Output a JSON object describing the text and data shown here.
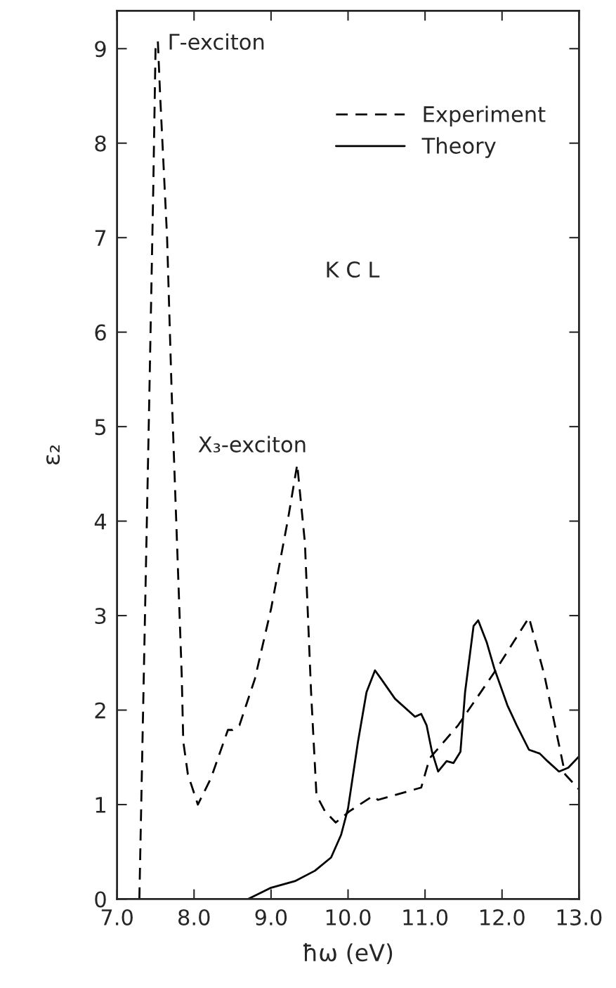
{
  "chart_data": {
    "type": "line",
    "xlabel": "ħω (eV)",
    "ylabel": "ε₂",
    "xlim": [
      7.0,
      13.0
    ],
    "ylim": [
      0,
      9.4
    ],
    "xticks": [
      {
        "value": 7,
        "label": "7.0"
      },
      {
        "value": 8,
        "label": "8.0"
      },
      {
        "value": 9,
        "label": "9.0"
      },
      {
        "value": 10,
        "label": "10.0"
      },
      {
        "value": 11,
        "label": "11.0"
      },
      {
        "value": 12,
        "label": "12.0"
      },
      {
        "value": 13,
        "label": "13.0"
      }
    ],
    "yticks": [
      0,
      1,
      2,
      3,
      4,
      5,
      6,
      7,
      8,
      9
    ],
    "grid": false,
    "legend": "top right",
    "marker": "none",
    "series": [
      {
        "name": "Experiment",
        "color": "#000000",
        "line_style": "dashed",
        "x": [
          7.29,
          7.42,
          7.47,
          7.5,
          7.53,
          7.56,
          7.65,
          7.71,
          7.84,
          7.86,
          7.92,
          8.05,
          8.22,
          8.44,
          8.5,
          8.59,
          8.79,
          9.0,
          9.22,
          9.34,
          9.44,
          9.52,
          9.59,
          9.7,
          9.84,
          10.02,
          10.32,
          10.39,
          10.95,
          11.06,
          11.43,
          11.9,
          12.35,
          12.55,
          12.82,
          13.0
        ],
        "values": [
          0,
          5.35,
          7.5,
          9.0,
          9.08,
          8.5,
          7.0,
          5.35,
          2.37,
          1.67,
          1.32,
          1.0,
          1.28,
          1.79,
          1.79,
          1.84,
          2.33,
          3.07,
          4.02,
          4.6,
          3.77,
          2.19,
          1.1,
          0.93,
          0.81,
          0.93,
          1.09,
          1.05,
          1.18,
          1.49,
          1.84,
          2.4,
          2.98,
          2.37,
          1.32,
          1.16
        ]
      },
      {
        "name": "Theory",
        "color": "#000000",
        "line_style": "solid",
        "x": [
          8.7,
          9.0,
          9.31,
          9.57,
          9.78,
          9.91,
          10.0,
          10.13,
          10.24,
          10.35,
          10.43,
          10.61,
          10.87,
          10.95,
          11.02,
          11.09,
          11.17,
          11.28,
          11.37,
          11.46,
          11.52,
          11.63,
          11.69,
          11.8,
          11.9,
          12.07,
          12.19,
          12.35,
          12.49,
          12.59,
          12.74,
          12.86,
          13.0
        ],
        "values": [
          0,
          0.12,
          0.19,
          0.3,
          0.44,
          0.68,
          0.96,
          1.67,
          2.19,
          2.42,
          2.33,
          2.12,
          1.93,
          1.96,
          1.84,
          1.56,
          1.35,
          1.46,
          1.44,
          1.56,
          2.19,
          2.89,
          2.95,
          2.72,
          2.44,
          2.05,
          1.84,
          1.58,
          1.54,
          1.46,
          1.35,
          1.39,
          1.51
        ]
      }
    ],
    "annotations": [
      {
        "text": "Γ-exciton",
        "x": 7.53,
        "y": 9.08
      },
      {
        "text": "X₃-exciton",
        "x": 9.34,
        "y": 4.6
      },
      "K C L"
    ]
  }
}
